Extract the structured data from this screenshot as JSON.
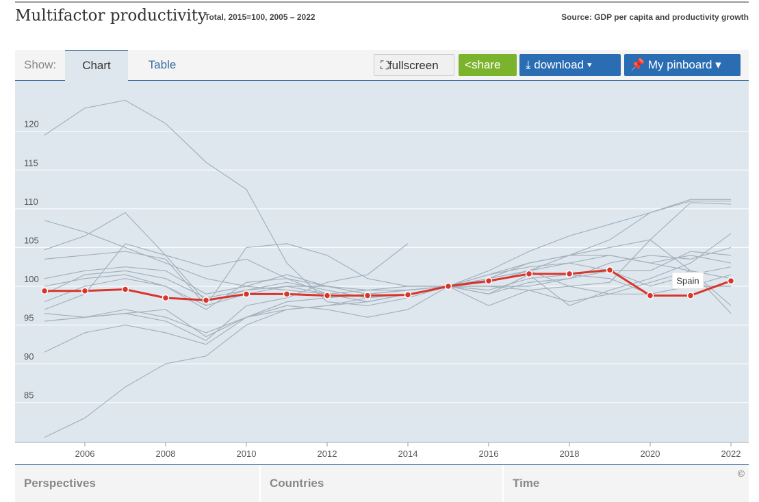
{
  "header": {
    "title": "Multifactor productivity",
    "subtitle": "Total, 2015=100, 2005 – 2022",
    "source": "Source: GDP per capita and productivity growth"
  },
  "toolbar": {
    "show_label": "Show:",
    "tabs": [
      "Chart",
      "Table"
    ],
    "fullscreen": "fullscreen",
    "share": "share",
    "download": "download ▾",
    "pinboard": "My pinboard ▾"
  },
  "bottom": {
    "panels": [
      "Perspectives",
      "Countries",
      "Time"
    ],
    "copyright": "©"
  },
  "colors": {
    "highlight": "#d9352a",
    "other": "#a3b1bd",
    "background": "#dfe7ee"
  },
  "chart_data": {
    "type": "line",
    "x": [
      2005,
      2006,
      2007,
      2008,
      2009,
      2010,
      2011,
      2012,
      2013,
      2014,
      2015,
      2016,
      2017,
      2018,
      2019,
      2020,
      2021,
      2022
    ],
    "xticks": [
      2006,
      2008,
      2010,
      2012,
      2014,
      2016,
      2018,
      2020,
      2022
    ],
    "yticks": [
      85,
      90,
      95,
      100,
      105,
      110,
      115,
      120
    ],
    "ylim": [
      80,
      126.5
    ],
    "highlight": {
      "name": "Spain",
      "values": [
        99.4,
        99.4,
        99.6,
        98.5,
        98.2,
        99.0,
        99.0,
        98.8,
        98.8,
        98.9,
        100,
        100.7,
        101.6,
        101.6,
        102.1,
        98.8,
        98.8,
        100.7
      ]
    },
    "others": [
      [
        119.5,
        123,
        124,
        121,
        116,
        112.5,
        103,
        98,
        97.5,
        98.5,
        100,
        101,
        102,
        103,
        104,
        103,
        102,
        101
      ],
      [
        80.5,
        83,
        87,
        90,
        91,
        95,
        97,
        97.5,
        98,
        99,
        100,
        100.5,
        102,
        104,
        106,
        109.5,
        111,
        111
      ],
      [
        91.5,
        94,
        95,
        94,
        92.5,
        96,
        98,
        98.5,
        99,
        99.5,
        100,
        101,
        103,
        104,
        105,
        106,
        110.8,
        110.6
      ],
      [
        108.5,
        107,
        105,
        103,
        101,
        100,
        99.5,
        99,
        99.5,
        100,
        100,
        101.5,
        103,
        104,
        104,
        103,
        104,
        103
      ],
      [
        104.7,
        106.5,
        109.5,
        104,
        98,
        99.5,
        100,
        99,
        98,
        99,
        100,
        99,
        100.5,
        101,
        103,
        104,
        103.5,
        105
      ],
      [
        95.5,
        96,
        96.5,
        97,
        93.5,
        96,
        97,
        97.5,
        98.5,
        99,
        100,
        102,
        104.5,
        106.5,
        108,
        109.5,
        111.2,
        111.2
      ],
      [
        96.5,
        96,
        96.5,
        95.5,
        93,
        97.5,
        98.5,
        100.5,
        101.5,
        105.5,
        null,
        null,
        null,
        null,
        null,
        null,
        null,
        null
      ],
      [
        100,
        101,
        101.5,
        100,
        97,
        100.5,
        101,
        99,
        98,
        99,
        100,
        97.5,
        99.5,
        100,
        100.5,
        106,
        102,
        96.5
      ],
      [
        97,
        99,
        105.5,
        104,
        102.5,
        103.5,
        101,
        100,
        99.5,
        99.5,
        100,
        101,
        102,
        100,
        99,
        100.5,
        102,
        97.5
      ],
      [
        103.5,
        104,
        104.5,
        103.5,
        97.5,
        105,
        105.5,
        104,
        101,
        100,
        100,
        99,
        101.5,
        97.5,
        99.5,
        101,
        103,
        106.8
      ],
      [
        98,
        100,
        101,
        100,
        97.5,
        99,
        100,
        100,
        99,
        99.5,
        100,
        99.5,
        101,
        101.5,
        101,
        99,
        100,
        101.5
      ],
      [
        99,
        101.5,
        102,
        101,
        98.5,
        99.5,
        100.5,
        99.5,
        98.5,
        99,
        100,
        100,
        100,
        101,
        102,
        100,
        101.5,
        102.5
      ],
      [
        95.5,
        96,
        97,
        96,
        94,
        96,
        97.5,
        97,
        96,
        97,
        100,
        101.5,
        102.5,
        103,
        102,
        102,
        104.5,
        104
      ],
      [
        101,
        102,
        102.5,
        102,
        99,
        100,
        101.5,
        100,
        99,
        99.5,
        100,
        100,
        99.5,
        98,
        99,
        99,
        100,
        100
      ]
    ]
  }
}
